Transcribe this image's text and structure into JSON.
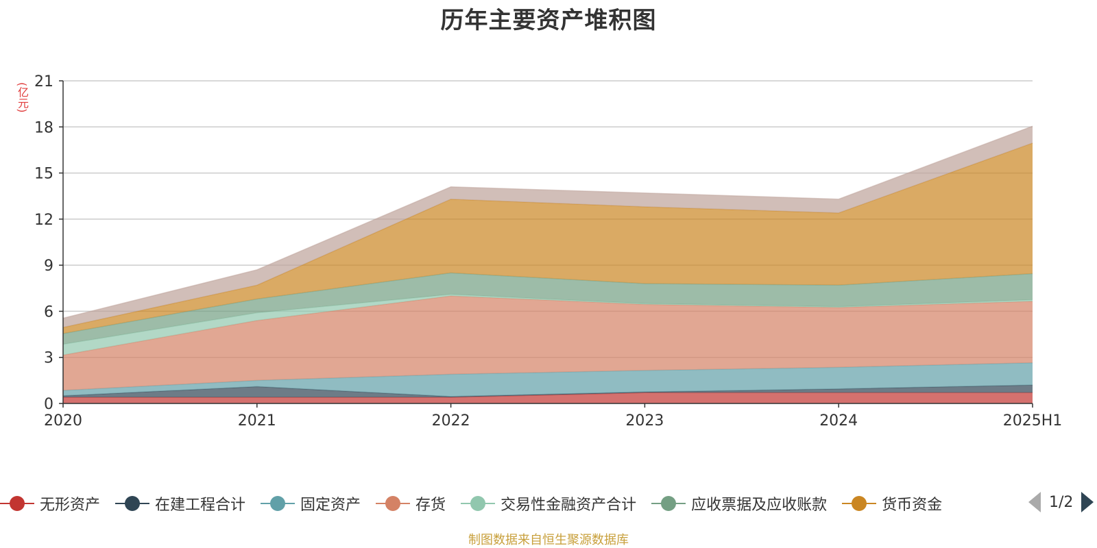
{
  "chart_data": {
    "type": "area",
    "stacked": true,
    "title": "历年主要资产堆积图",
    "unit": "(亿元)",
    "categories": [
      "2020",
      "2021",
      "2022",
      "2023",
      "2024",
      "2025H1"
    ],
    "ylim": [
      0,
      21
    ],
    "yticks": [
      0,
      3,
      6,
      9,
      12,
      15,
      18,
      21
    ],
    "grid": true,
    "legend_position": "bottom",
    "series": [
      {
        "name": "无形资产",
        "color": "#c23531",
        "values": [
          0.4,
          0.4,
          0.4,
          0.7,
          0.7,
          0.7
        ]
      },
      {
        "name": "在建工程合计",
        "color": "#2f4554",
        "values": [
          0.1,
          0.7,
          0.05,
          0.05,
          0.25,
          0.5
        ]
      },
      {
        "name": "固定资产",
        "color": "#61a0a8",
        "values": [
          0.35,
          0.4,
          1.45,
          1.4,
          1.4,
          1.45
        ]
      },
      {
        "name": "存货",
        "color": "#d48265",
        "values": [
          2.3,
          3.9,
          5.1,
          4.3,
          3.9,
          4.0
        ]
      },
      {
        "name": "交易性金融资产合计",
        "color": "#91c7ae",
        "values": [
          0.7,
          0.5,
          0.1,
          0.05,
          0.05,
          0.1
        ]
      },
      {
        "name": "应收票据及应收账款",
        "color": "#749f83",
        "values": [
          0.7,
          0.9,
          1.4,
          1.3,
          1.4,
          1.7
        ]
      },
      {
        "name": "货币资金",
        "color": "#ca8622",
        "values": [
          0.4,
          0.9,
          4.8,
          5.0,
          4.7,
          8.5
        ]
      },
      {
        "name": "",
        "color": "#bda29a",
        "values": [
          0.6,
          1.0,
          0.8,
          0.9,
          0.9,
          1.1
        ]
      }
    ]
  },
  "legend": {
    "items": [
      {
        "label": "无形资产",
        "color": "#c23531"
      },
      {
        "label": "在建工程合计",
        "color": "#2f4554"
      },
      {
        "label": "固定资产",
        "color": "#61a0a8"
      },
      {
        "label": "存货",
        "color": "#d48265"
      },
      {
        "label": "交易性金融资产合计",
        "color": "#91c7ae"
      },
      {
        "label": "应收票据及应收账款",
        "color": "#749f83"
      },
      {
        "label": "货币资金",
        "color": "#ca8622"
      }
    ],
    "page_indicator": "1/2"
  },
  "source_note": "制图数据来自恒生聚源数据库"
}
